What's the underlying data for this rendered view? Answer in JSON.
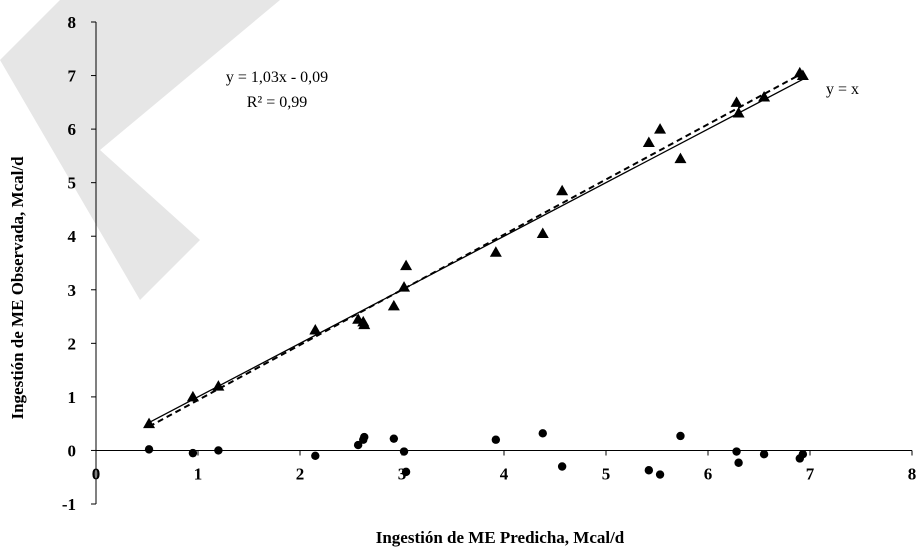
{
  "chart_data": {
    "type": "scatter",
    "xlabel": "Ingestión de ME Predicha, Mcal/d",
    "ylabel": "Ingestión de ME Observada, Mcal/d",
    "xlim": [
      0,
      8
    ],
    "ylim": [
      -1,
      8
    ],
    "x_ticks": [
      "0",
      "1",
      "2",
      "3",
      "4",
      "5",
      "6",
      "7",
      "8"
    ],
    "y_ticks": [
      "-1",
      "0",
      "1",
      "2",
      "3",
      "4",
      "5",
      "6",
      "7",
      "8"
    ],
    "grid": false,
    "series": [
      {
        "marker": "triangle",
        "color": "#000000",
        "x": [
          0.52,
          0.95,
          1.2,
          2.15,
          2.57,
          2.62,
          2.63,
          2.92,
          3.02,
          3.04,
          3.92,
          4.38,
          4.57,
          5.42,
          5.53,
          5.73,
          6.28,
          6.3,
          6.55,
          6.9,
          6.93
        ],
        "y": [
          0.5,
          1.0,
          1.2,
          2.25,
          2.45,
          2.4,
          2.35,
          2.7,
          3.05,
          3.45,
          3.7,
          4.05,
          4.85,
          5.75,
          6.0,
          5.45,
          6.5,
          6.3,
          6.6,
          7.05,
          7.0
        ]
      },
      {
        "marker": "circle",
        "color": "#000000",
        "x": [
          0.52,
          0.95,
          1.2,
          2.15,
          2.57,
          2.62,
          2.63,
          2.92,
          3.02,
          3.04,
          3.92,
          4.38,
          4.57,
          5.42,
          5.53,
          5.73,
          6.28,
          6.3,
          6.55,
          6.9,
          6.93
        ],
        "y": [
          0.02,
          -0.05,
          0.0,
          -0.1,
          0.1,
          0.2,
          0.25,
          0.22,
          -0.02,
          -0.4,
          0.2,
          0.32,
          -0.3,
          -0.37,
          -0.45,
          0.27,
          -0.02,
          -0.23,
          -0.07,
          -0.15,
          -0.07
        ]
      }
    ],
    "lines": [
      {
        "style": "solid",
        "x": [
          0.52,
          6.93
        ],
        "y": [
          0.52,
          6.93
        ],
        "label": "y = x"
      },
      {
        "style": "dashed",
        "x": [
          0.52,
          6.93
        ],
        "y": [
          0.4456,
          7.0479
        ]
      }
    ],
    "annotations": {
      "equation": "y = 1,03x - 0,09",
      "r2": "R² = 0,99",
      "identity": "y = x"
    }
  }
}
